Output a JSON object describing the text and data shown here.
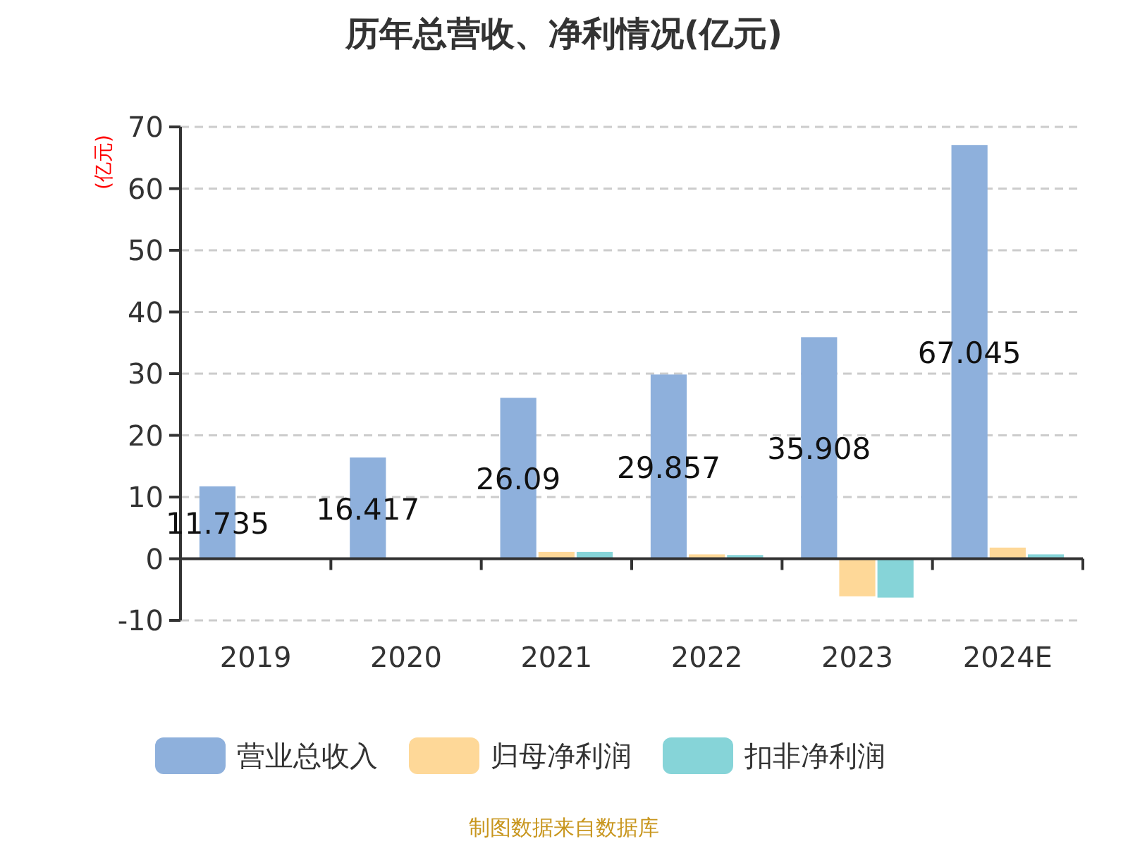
{
  "chart_data": {
    "type": "bar",
    "title": "历年总营收、净利情况(亿元)",
    "ylabel": "(亿元)",
    "categories": [
      "2019",
      "2020",
      "2021",
      "2022",
      "2023",
      "2024E"
    ],
    "series": [
      {
        "name": "营业总收入",
        "color": "#8eb0dc",
        "values": [
          11.735,
          16.417,
          26.09,
          29.857,
          35.908,
          67.045
        ],
        "value_labels": [
          "11.735",
          "16.417",
          "26.09",
          "29.857",
          "35.908",
          "67.045"
        ]
      },
      {
        "name": "归母净利润",
        "color": "#fed898",
        "values": [
          null,
          null,
          1.1,
          0.7,
          -6.1,
          1.8
        ]
      },
      {
        "name": "扣非净利润",
        "color": "#86d4d8",
        "values": [
          null,
          null,
          1.1,
          0.6,
          -6.3,
          0.7
        ]
      }
    ],
    "ylim": [
      -10,
      70
    ],
    "yticks": [
      -10,
      0,
      10,
      20,
      30,
      40,
      50,
      60,
      70
    ],
    "grid": "y",
    "legend": "bottom",
    "annotations": [
      "制图数据来自数据库"
    ]
  }
}
